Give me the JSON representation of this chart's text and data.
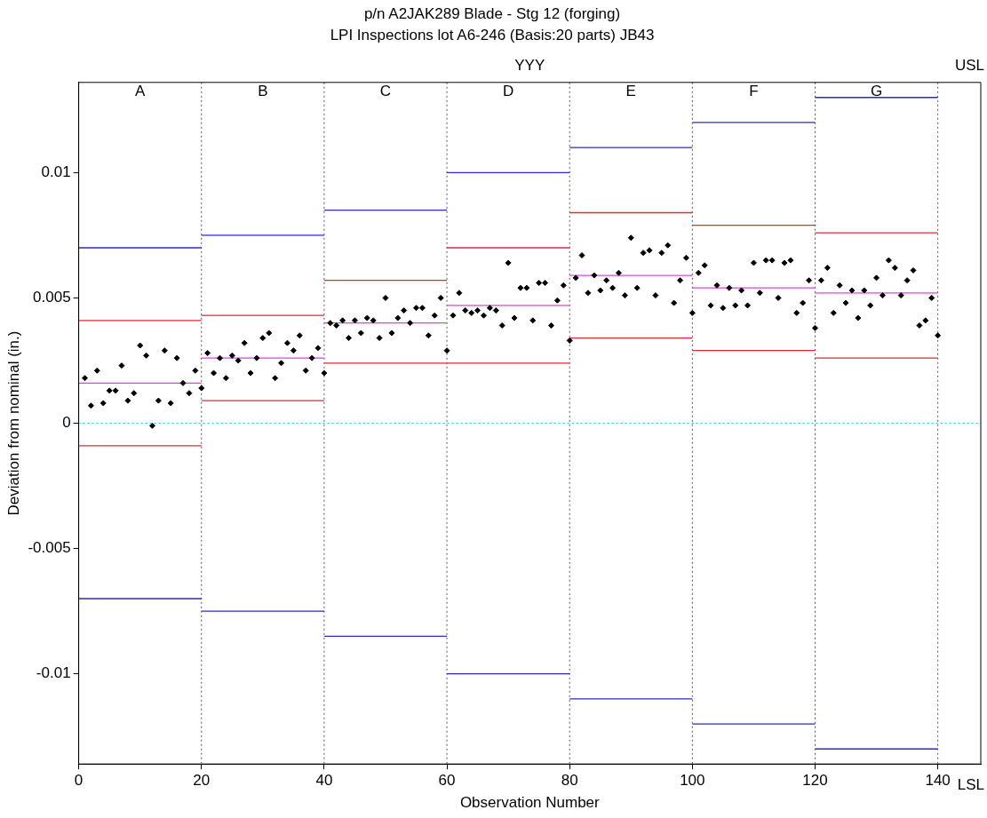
{
  "chart_data": {
    "type": "scatter",
    "title": "p/n A2JAK289 Blade - Stg 12 (forging)",
    "subtitle": "LPI Inspections lot A6-246 (Basis:20 parts) JB43",
    "xlabel": "Observation Number",
    "ylabel": "Deviation from nominal (in.)",
    "xlim": [
      0,
      147
    ],
    "xticks": [
      0,
      20,
      40,
      60,
      80,
      100,
      120,
      140
    ],
    "ylim": [
      -0.0136,
      0.0136
    ],
    "yticks": [
      -0.01,
      -0.005,
      0,
      0.005,
      0.01
    ],
    "grid": false,
    "series": [
      {
        "type": "scatter",
        "color": "#000000",
        "marker": "diamond",
        "x": [
          1,
          2,
          3,
          4,
          5,
          6,
          7,
          8,
          9,
          10,
          11,
          12,
          13,
          14,
          15,
          16,
          17,
          18,
          19,
          20,
          21,
          22,
          23,
          24,
          25,
          26,
          27,
          28,
          29,
          30,
          31,
          32,
          33,
          34,
          35,
          36,
          37,
          38,
          39,
          40,
          41,
          42,
          43,
          44,
          45,
          46,
          47,
          48,
          49,
          50,
          51,
          52,
          53,
          54,
          55,
          56,
          57,
          58,
          59,
          60,
          61,
          62,
          63,
          64,
          65,
          66,
          67,
          68,
          69,
          70,
          71,
          72,
          73,
          74,
          75,
          76,
          77,
          78,
          79,
          80,
          81,
          82,
          83,
          84,
          85,
          86,
          87,
          88,
          89,
          90,
          91,
          92,
          93,
          94,
          95,
          96,
          97,
          98,
          99,
          100,
          101,
          102,
          103,
          104,
          105,
          106,
          107,
          108,
          109,
          110,
          111,
          112,
          113,
          114,
          115,
          116,
          117,
          118,
          119,
          120,
          121,
          122,
          123,
          124,
          125,
          126,
          127,
          128,
          129,
          130,
          131,
          132,
          133,
          134,
          135,
          136,
          137,
          138,
          139,
          140
        ],
        "values": [
          0.0018,
          0.0007,
          0.0021,
          0.0008,
          0.0013,
          0.0013,
          0.0023,
          0.0009,
          0.0012,
          0.0031,
          0.0027,
          -0.0001,
          0.0009,
          0.0029,
          0.0008,
          0.0026,
          0.0016,
          0.0012,
          0.0021,
          0.0014,
          0.0028,
          0.002,
          0.0026,
          0.0018,
          0.0027,
          0.0025,
          0.0032,
          0.002,
          0.0026,
          0.0034,
          0.0036,
          0.0018,
          0.0024,
          0.0032,
          0.0029,
          0.0035,
          0.0021,
          0.0026,
          0.003,
          0.002,
          0.004,
          0.0039,
          0.0041,
          0.0034,
          0.0041,
          0.0036,
          0.0042,
          0.0041,
          0.0034,
          0.005,
          0.0036,
          0.0042,
          0.0045,
          0.004,
          0.0046,
          0.0046,
          0.0035,
          0.0043,
          0.005,
          0.0029,
          0.0043,
          0.0052,
          0.0045,
          0.0044,
          0.0045,
          0.0043,
          0.0046,
          0.0045,
          0.0039,
          0.0064,
          0.0042,
          0.0054,
          0.0054,
          0.0041,
          0.0056,
          0.0056,
          0.0039,
          0.0049,
          0.0055,
          0.0033,
          0.0058,
          0.0067,
          0.0052,
          0.0059,
          0.0053,
          0.0057,
          0.0054,
          0.006,
          0.0051,
          0.0074,
          0.0054,
          0.0068,
          0.0069,
          0.0051,
          0.0068,
          0.0071,
          0.0048,
          0.0057,
          0.0066,
          0.0044,
          0.006,
          0.0063,
          0.0047,
          0.0055,
          0.0046,
          0.0054,
          0.0047,
          0.0053,
          0.0047,
          0.0064,
          0.0052,
          0.0065,
          0.0065,
          0.005,
          0.0064,
          0.0065,
          0.0044,
          0.0048,
          0.0057,
          0.0038,
          0.0057,
          0.0062,
          0.0044,
          0.0055,
          0.0048,
          0.0053,
          0.0042,
          0.0053,
          0.0047,
          0.0058,
          0.0051,
          0.0065,
          0.0062,
          0.0051,
          0.0057,
          0.0061,
          0.0039,
          0.0041,
          0.005,
          0.0035
        ]
      },
      {
        "type": "line",
        "color": "#2a2ac8",
        "x": [
          0,
          20
        ],
        "values": [
          0.007,
          0.007
        ]
      },
      {
        "type": "line",
        "color": "#2a2ac8",
        "x": [
          20,
          40
        ],
        "values": [
          0.0075,
          0.0075
        ]
      },
      {
        "type": "line",
        "color": "#2a2ac8",
        "x": [
          40,
          60
        ],
        "values": [
          0.0085,
          0.0085
        ]
      },
      {
        "type": "line",
        "color": "#2a2ac8",
        "x": [
          60,
          80
        ],
        "values": [
          0.01,
          0.01
        ]
      },
      {
        "type": "line",
        "color": "#2a2ac8",
        "x": [
          80,
          100
        ],
        "values": [
          0.011,
          0.011
        ]
      },
      {
        "type": "line",
        "color": "#2a2ac8",
        "x": [
          100,
          120
        ],
        "values": [
          0.012,
          0.012
        ]
      },
      {
        "type": "line",
        "color": "#2a2ac8",
        "x": [
          120,
          140
        ],
        "values": [
          0.013,
          0.013
        ]
      },
      {
        "type": "line",
        "color": "#2a2ac8",
        "x": [
          0,
          20
        ],
        "values": [
          -0.007,
          -0.007
        ]
      },
      {
        "type": "line",
        "color": "#2a2ac8",
        "x": [
          20,
          40
        ],
        "values": [
          -0.0075,
          -0.0075
        ]
      },
      {
        "type": "line",
        "color": "#2a2ac8",
        "x": [
          40,
          60
        ],
        "values": [
          -0.0085,
          -0.0085
        ]
      },
      {
        "type": "line",
        "color": "#2a2ac8",
        "x": [
          60,
          80
        ],
        "values": [
          -0.01,
          -0.01
        ]
      },
      {
        "type": "line",
        "color": "#2a2ac8",
        "x": [
          80,
          100
        ],
        "values": [
          -0.011,
          -0.011
        ]
      },
      {
        "type": "line",
        "color": "#2a2ac8",
        "x": [
          100,
          120
        ],
        "values": [
          -0.012,
          -0.012
        ]
      },
      {
        "type": "line",
        "color": "#2a2ac8",
        "x": [
          120,
          140
        ],
        "values": [
          -0.013,
          -0.013
        ]
      },
      {
        "type": "line",
        "color": "#e02a3a",
        "x": [
          0,
          20
        ],
        "values": [
          0.0041,
          0.0041
        ]
      },
      {
        "type": "line",
        "color": "#e02a3a",
        "x": [
          20,
          40
        ],
        "values": [
          0.0043,
          0.0043
        ]
      },
      {
        "type": "line",
        "color": "#e02a3a",
        "x": [
          40,
          60
        ],
        "values": [
          0.0057,
          0.0057
        ]
      },
      {
        "type": "line",
        "color": "#e02a3a",
        "x": [
          60,
          80
        ],
        "values": [
          0.007,
          0.007
        ]
      },
      {
        "type": "line",
        "color": "#e02a3a",
        "x": [
          80,
          100
        ],
        "values": [
          0.0084,
          0.0084
        ]
      },
      {
        "type": "line",
        "color": "#e02a3a",
        "x": [
          100,
          120
        ],
        "values": [
          0.0079,
          0.0079
        ]
      },
      {
        "type": "line",
        "color": "#e02a3a",
        "x": [
          120,
          140
        ],
        "values": [
          0.0076,
          0.0076
        ]
      },
      {
        "type": "line",
        "color": "#e02a3a",
        "x": [
          0,
          20
        ],
        "values": [
          -0.0009,
          -0.0009
        ]
      },
      {
        "type": "line",
        "color": "#e02a3a",
        "x": [
          20,
          40
        ],
        "values": [
          0.0009,
          0.0009
        ]
      },
      {
        "type": "line",
        "color": "#e02a3a",
        "x": [
          40,
          80
        ],
        "values": [
          0.0024,
          0.0024
        ]
      },
      {
        "type": "line",
        "color": "#e02a3a",
        "x": [
          80,
          100
        ],
        "values": [
          0.0034,
          0.0034
        ]
      },
      {
        "type": "line",
        "color": "#e02a3a",
        "x": [
          100,
          120
        ],
        "values": [
          0.0029,
          0.0029
        ]
      },
      {
        "type": "line",
        "color": "#e02a3a",
        "x": [
          120,
          140
        ],
        "values": [
          0.0026,
          0.0026
        ]
      },
      {
        "type": "line",
        "color": "#e040e0",
        "x": [
          0,
          20
        ],
        "values": [
          0.0016,
          0.0016
        ]
      },
      {
        "type": "line",
        "color": "#e040e0",
        "x": [
          20,
          40
        ],
        "values": [
          0.0026,
          0.0026
        ]
      },
      {
        "type": "line",
        "color": "#e040e0",
        "x": [
          40,
          60
        ],
        "values": [
          0.004,
          0.004
        ]
      },
      {
        "type": "line",
        "color": "#e040e0",
        "x": [
          60,
          80
        ],
        "values": [
          0.0047,
          0.0047
        ]
      },
      {
        "type": "line",
        "color": "#e040e0",
        "x": [
          80,
          100
        ],
        "values": [
          0.0059,
          0.0059
        ]
      },
      {
        "type": "line",
        "color": "#e040e0",
        "x": [
          100,
          120
        ],
        "values": [
          0.0054,
          0.0054
        ]
      },
      {
        "type": "line",
        "color": "#e040e0",
        "x": [
          120,
          140
        ],
        "values": [
          0.0052,
          0.0052
        ]
      }
    ],
    "ref_lines": [
      {
        "axis": "y",
        "value": 0,
        "color": "#00d8e8",
        "line_style": "dotted"
      },
      {
        "axis": "x",
        "value": 20,
        "color": "#555555",
        "line_style": "dotted"
      },
      {
        "axis": "x",
        "value": 40,
        "color": "#555555",
        "line_style": "dotted"
      },
      {
        "axis": "x",
        "value": 60,
        "color": "#555555",
        "line_style": "dotted"
      },
      {
        "axis": "x",
        "value": 80,
        "color": "#555555",
        "line_style": "dotted"
      },
      {
        "axis": "x",
        "value": 100,
        "color": "#555555",
        "line_style": "dotted"
      },
      {
        "axis": "x",
        "value": 120,
        "color": "#555555",
        "line_style": "dotted"
      },
      {
        "axis": "x",
        "value": 140,
        "color": "#555555",
        "line_style": "dotted"
      }
    ],
    "annotations": [
      "YYY",
      "USL",
      "LSL",
      "A",
      "B",
      "C",
      "D",
      "E",
      "F",
      "G"
    ]
  }
}
